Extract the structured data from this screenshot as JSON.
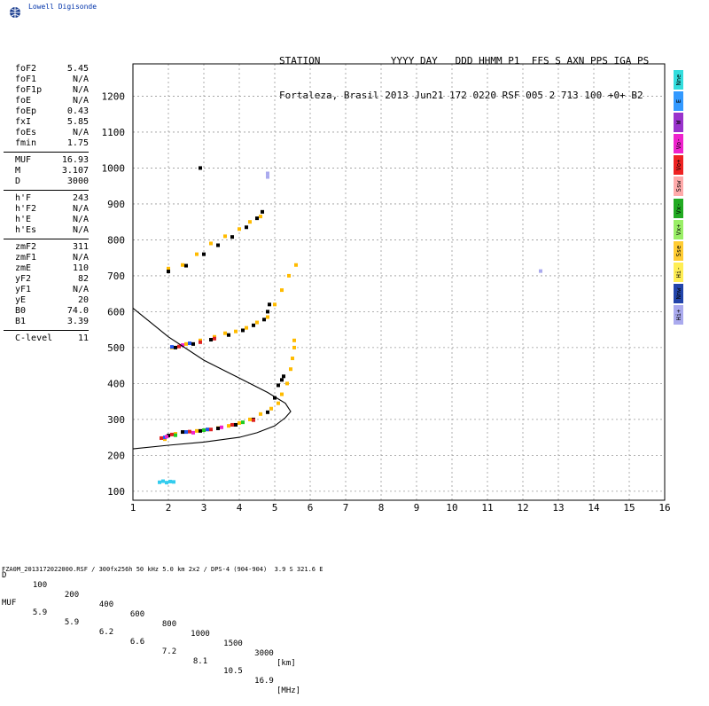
{
  "logo_text": "Lowell Digisonde",
  "header": {
    "line1": "STATION            YYYY DAY   DDD HHMM P1  FFS S AXN PPS IGA PS",
    "line2": "Fortaleza, Brasil 2013 Jun21 172 0220 RSF 005 2 713 100 +0+ B2"
  },
  "params": {
    "group1": [
      {
        "label": "foF2",
        "value": "5.45"
      },
      {
        "label": "foF1",
        "value": "N/A"
      },
      {
        "label": "foF1p",
        "value": "N/A"
      },
      {
        "label": "foE",
        "value": "N/A"
      },
      {
        "label": "foEp",
        "value": "0.43"
      },
      {
        "label": "fxI",
        "value": "5.85"
      },
      {
        "label": "foEs",
        "value": "N/A"
      },
      {
        "label": "fmin",
        "value": "1.75"
      }
    ],
    "group2": [
      {
        "label": "MUF",
        "value": "16.93"
      },
      {
        "label": "M",
        "value": "3.107"
      },
      {
        "label": "D",
        "value": "3000"
      }
    ],
    "group3": [
      {
        "label": "h'F",
        "value": "243"
      },
      {
        "label": "h'F2",
        "value": "N/A"
      },
      {
        "label": "h'E",
        "value": "N/A"
      },
      {
        "label": "h'Es",
        "value": "N/A"
      }
    ],
    "group4": [
      {
        "label": "zmF2",
        "value": "311"
      },
      {
        "label": "zmF1",
        "value": "N/A"
      },
      {
        "label": "zmE",
        "value": "110"
      },
      {
        "label": "yF2",
        "value": "82"
      },
      {
        "label": "yF1",
        "value": "N/A"
      },
      {
        "label": "yE",
        "value": "20"
      },
      {
        "label": "B0",
        "value": "74.0"
      },
      {
        "label": "B1",
        "value": "3.39"
      }
    ],
    "clevel": {
      "label": "C-level",
      "value": "11"
    }
  },
  "legend": [
    {
      "label": "Nne",
      "color": "#33dddd"
    },
    {
      "label": "E",
      "color": "#3399ff"
    },
    {
      "label": "W",
      "color": "#9933cc"
    },
    {
      "label": "Vo-",
      "color": "#ee22cc"
    },
    {
      "label": "Vo+",
      "color": "#ee2222"
    },
    {
      "label": "Ssw",
      "color": "#ffaaaa"
    },
    {
      "label": "Vx-",
      "color": "#22aa22"
    },
    {
      "label": "Vx+",
      "color": "#99ee66"
    },
    {
      "label": "Sse",
      "color": "#ffcc33"
    },
    {
      "label": "Hi-",
      "color": "#ffee55"
    },
    {
      "label": "Nnw",
      "color": "#2244aa"
    },
    {
      "label": "Hi+",
      "color": "#aaaaee"
    }
  ],
  "bottom": {
    "d_label": "D",
    "muf_label": "MUF",
    "d_values": [
      "100",
      "200",
      "400",
      "600",
      "800",
      "1000",
      "1500",
      "3000"
    ],
    "muf_values": [
      "5.9",
      "5.9",
      "6.2",
      "6.6",
      "7.2",
      "8.1",
      "10.5",
      "16.9"
    ],
    "d_unit": "[km]",
    "muf_unit": "[MHz]"
  },
  "footer": "FZA0M_2013172022000.RSF / 300fx256h 50 kHz 5.0 km 2x2 / DPS-4 (904-904)  3.9 S 321.6 E",
  "chart_data": {
    "type": "scatter",
    "xlim": [
      1,
      16
    ],
    "ylim": [
      75,
      1290
    ],
    "x_ticks": [
      1,
      2,
      3,
      4,
      5,
      6,
      7,
      8,
      9,
      10,
      11,
      12,
      13,
      14,
      15,
      16
    ],
    "y_ticks": [
      100,
      200,
      300,
      400,
      500,
      600,
      700,
      800,
      900,
      1000,
      1100,
      1200
    ],
    "grid": true,
    "series": [
      {
        "color": "#ffbb00",
        "points": [
          [
            1.9,
            245
          ],
          [
            2.2,
            260
          ],
          [
            2.5,
            265
          ],
          [
            2.8,
            268
          ],
          [
            3.1,
            272
          ],
          [
            3.4,
            276
          ],
          [
            3.7,
            282
          ],
          [
            4.0,
            290
          ],
          [
            4.3,
            300
          ],
          [
            4.6,
            315
          ],
          [
            4.9,
            330
          ],
          [
            5.1,
            345
          ],
          [
            5.2,
            370
          ],
          [
            5.35,
            400
          ],
          [
            5.45,
            440
          ],
          [
            5.5,
            470
          ],
          [
            5.55,
            500
          ],
          [
            5.55,
            520
          ]
        ]
      },
      {
        "color": "#ffbb00",
        "points": [
          [
            2.1,
            500
          ],
          [
            2.5,
            510
          ],
          [
            2.9,
            520
          ],
          [
            3.3,
            530
          ],
          [
            3.6,
            540
          ],
          [
            3.9,
            545
          ],
          [
            4.2,
            555
          ],
          [
            4.5,
            570
          ],
          [
            4.8,
            585
          ],
          [
            5.0,
            620
          ],
          [
            5.2,
            660
          ],
          [
            5.4,
            700
          ],
          [
            5.6,
            730
          ]
        ]
      },
      {
        "color": "#ffbb00",
        "points": [
          [
            2.0,
            720
          ],
          [
            2.4,
            730
          ],
          [
            2.8,
            760
          ],
          [
            3.2,
            790
          ],
          [
            3.6,
            810
          ],
          [
            4.0,
            830
          ],
          [
            4.3,
            850
          ],
          [
            4.6,
            865
          ]
        ]
      },
      {
        "color": "#000000",
        "points": [
          [
            2.0,
            255
          ],
          [
            2.4,
            265
          ],
          [
            2.9,
            268
          ],
          [
            3.4,
            275
          ],
          [
            3.9,
            285
          ],
          [
            4.4,
            300
          ],
          [
            4.8,
            320
          ],
          [
            5.0,
            360
          ],
          [
            5.1,
            395
          ],
          [
            5.2,
            410
          ],
          [
            5.25,
            420
          ]
        ]
      },
      {
        "color": "#000000",
        "points": [
          [
            2.2,
            500
          ],
          [
            2.7,
            510
          ],
          [
            3.2,
            522
          ],
          [
            3.7,
            535
          ],
          [
            4.1,
            548
          ],
          [
            4.4,
            562
          ],
          [
            4.7,
            578
          ],
          [
            4.8,
            600
          ],
          [
            4.85,
            620
          ]
        ]
      },
      {
        "color": "#000000",
        "points": [
          [
            2.0,
            712
          ],
          [
            2.5,
            728
          ],
          [
            3.0,
            760
          ],
          [
            3.4,
            785
          ],
          [
            3.8,
            808
          ],
          [
            4.2,
            835
          ],
          [
            4.5,
            860
          ],
          [
            4.65,
            878
          ]
        ]
      },
      {
        "color": "#dd2222",
        "points": [
          [
            1.8,
            248
          ],
          [
            2.1,
            258
          ],
          [
            2.6,
            266
          ],
          [
            3.2,
            272
          ],
          [
            3.8,
            285
          ],
          [
            4.4,
            298
          ],
          [
            2.3,
            503
          ],
          [
            2.9,
            515
          ],
          [
            3.3,
            525
          ]
        ]
      },
      {
        "color": "#2255ee",
        "points": [
          [
            1.9,
            250
          ],
          [
            2.5,
            265
          ],
          [
            3.1,
            272
          ],
          [
            2.1,
            502
          ],
          [
            2.6,
            512
          ]
        ]
      },
      {
        "color": "#ee22cc",
        "points": [
          [
            1.95,
            252
          ],
          [
            2.7,
            263
          ],
          [
            3.5,
            278
          ],
          [
            2.4,
            507
          ]
        ]
      },
      {
        "color": "#22cc22",
        "points": [
          [
            2.2,
            256
          ],
          [
            3.0,
            270
          ],
          [
            4.1,
            292
          ]
        ]
      },
      {
        "color": "#33ccee",
        "points": [
          [
            1.75,
            125
          ],
          [
            1.85,
            128
          ],
          [
            1.95,
            124
          ],
          [
            2.05,
            127
          ],
          [
            2.15,
            126
          ]
        ]
      },
      {
        "color": "#aaaaee",
        "points": [
          [
            4.8,
            975
          ],
          [
            4.8,
            985
          ],
          [
            12.5,
            713
          ]
        ]
      },
      {
        "color": "#000000",
        "points": [
          [
            2.9,
            1000
          ]
        ]
      }
    ],
    "profile": [
      [
        1,
        218
      ],
      [
        2,
        228
      ],
      [
        3,
        237
      ],
      [
        4,
        250
      ],
      [
        4.5,
        263
      ],
      [
        5.0,
        282
      ],
      [
        5.3,
        305
      ],
      [
        5.45,
        322
      ],
      [
        5.3,
        345
      ],
      [
        4.8,
        375
      ],
      [
        4.0,
        415
      ],
      [
        3.0,
        465
      ],
      [
        2.0,
        530
      ],
      [
        1.5,
        570
      ],
      [
        1.0,
        610
      ]
    ]
  }
}
